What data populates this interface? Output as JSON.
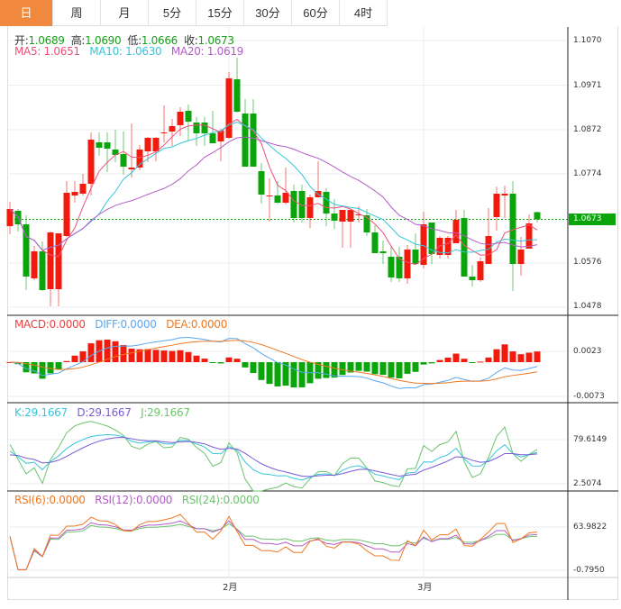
{
  "tabs": [
    "日",
    "周",
    "月",
    "5分",
    "15分",
    "30分",
    "60分",
    "4时"
  ],
  "active_tab": 0,
  "ohlc_header": {
    "open_label": "开:",
    "open": "1.0689",
    "high_label": "高:",
    "high": "1.0690",
    "low_label": "低:",
    "low": "1.0666",
    "close_label": "收:",
    "close": "1.0673"
  },
  "ma_header": {
    "ma5": "MA5: 1.0651",
    "ma10": "MA10: 1.0630",
    "ma20": "MA20: 1.0619"
  },
  "macd_header": {
    "macd": "MACD:0.0000",
    "diff": "DIFF:0.0000",
    "dea": "DEA:0.0000"
  },
  "kdj_header": {
    "k": "K:29.1667",
    "d": "D:29.1667",
    "j": "J:29.1667"
  },
  "rsi_header": {
    "rsi6": "RSI(6):0.0000",
    "rsi12": "RSI(12):0.0000",
    "rsi24": "RSI(24):0.0000"
  },
  "colors": {
    "up": "#f21a0c",
    "down": "#0aa50a",
    "ma5": "#f0507a",
    "ma10": "#36c5dc",
    "ma20": "#b45cc8",
    "diff": "#5aa8f0",
    "dea": "#f07820",
    "k": "#36c5dc",
    "d": "#7b5cd6",
    "j": "#6cc46c",
    "rsi6": "#f07820",
    "rsi12": "#b45cc8",
    "rsi24": "#6cc46c"
  },
  "chart_data": {
    "type": "candlestick",
    "price_ticks": [
      "1.1070",
      "1.0971",
      "1.0872",
      "1.0774",
      "1.0576",
      "1.0478"
    ],
    "price_range": [
      1.0478,
      1.107
    ],
    "current_price": "1.0673",
    "macd_ticks": [
      "0.0023",
      "-0.0073"
    ],
    "kdj_ticks": [
      "79.6149",
      "2.5074"
    ],
    "rsi_ticks": [
      "63.9822",
      "-0.7950"
    ],
    "month_labels": [
      {
        "label": "2月",
        "index": 27
      },
      {
        "label": "3月",
        "index": 51
      }
    ],
    "candles": [
      [
        1.0658,
        1.0712,
        1.064,
        1.0696
      ],
      [
        1.0692,
        1.0696,
        1.0646,
        1.0662
      ],
      [
        1.0662,
        1.0682,
        1.0516,
        1.0546
      ],
      [
        1.0542,
        1.0614,
        1.0538,
        1.0602
      ],
      [
        1.0602,
        1.0624,
        1.0514,
        1.0516
      ],
      [
        1.0518,
        1.0646,
        1.048,
        1.0644
      ],
      [
        1.0518,
        1.0642,
        1.048,
        1.0642
      ],
      [
        1.0636,
        1.0758,
        1.0634,
        1.0732
      ],
      [
        1.0726,
        1.0758,
        1.071,
        1.0734
      ],
      [
        1.073,
        1.0774,
        1.0726,
        1.0752
      ],
      [
        1.0752,
        1.0866,
        1.0726,
        1.085
      ],
      [
        1.0844,
        1.0866,
        1.0814,
        1.0832
      ],
      [
        1.0844,
        1.0866,
        1.0778,
        1.083
      ],
      [
        1.0828,
        1.0872,
        1.08,
        1.0816
      ],
      [
        1.0818,
        1.0868,
        1.0772,
        1.079
      ],
      [
        1.0784,
        1.0886,
        1.0766,
        1.0788
      ],
      [
        1.0788,
        1.0838,
        1.0782,
        1.0828
      ],
      [
        1.0824,
        1.0856,
        1.08,
        1.0854
      ],
      [
        1.0824,
        1.0856,
        1.0802,
        1.0854
      ],
      [
        1.0864,
        1.0926,
        1.0844,
        1.0866
      ],
      [
        1.0868,
        1.0896,
        1.0836,
        1.088
      ],
      [
        1.0882,
        1.0922,
        1.0858,
        1.0912
      ],
      [
        1.0914,
        1.0928,
        1.0848,
        1.089
      ],
      [
        1.0888,
        1.09,
        1.0836,
        1.0864
      ],
      [
        1.0888,
        1.09,
        1.0836,
        1.0864
      ],
      [
        1.0864,
        1.0914,
        1.0842,
        1.0842
      ],
      [
        1.0846,
        1.0874,
        1.0802,
        1.087
      ],
      [
        1.0854,
        1.1,
        1.0852,
        1.0986
      ],
      [
        1.0984,
        1.1032,
        1.091,
        1.0912
      ],
      [
        1.0908,
        1.094,
        1.079,
        1.079
      ],
      [
        1.0908,
        1.094,
        1.079,
        1.079
      ],
      [
        1.078,
        1.0798,
        1.0708,
        1.0728
      ],
      [
        1.0724,
        1.0764,
        1.0668,
        1.0726
      ],
      [
        1.0726,
        1.0758,
        1.0708,
        1.071
      ],
      [
        1.071,
        1.0788,
        1.0706,
        1.0732
      ],
      [
        1.0736,
        1.075,
        1.0666,
        1.0676
      ],
      [
        1.0736,
        1.075,
        1.0666,
        1.0676
      ],
      [
        1.0676,
        1.0728,
        1.0654,
        1.0722
      ],
      [
        1.0722,
        1.0802,
        1.0722,
        1.0736
      ],
      [
        1.0734,
        1.0742,
        1.0658,
        1.0686
      ],
      [
        1.0686,
        1.0718,
        1.0652,
        1.067
      ],
      [
        1.0668,
        1.0694,
        1.061,
        1.0694
      ],
      [
        1.0668,
        1.0696,
        1.061,
        1.0694
      ],
      [
        1.0682,
        1.0702,
        1.0666,
        1.0684
      ],
      [
        1.0682,
        1.0696,
        1.0636,
        1.0644
      ],
      [
        1.0644,
        1.066,
        1.0598,
        1.0598
      ],
      [
        1.0602,
        1.0626,
        1.0574,
        1.0598
      ],
      [
        1.059,
        1.0614,
        1.0534,
        1.0544
      ],
      [
        1.059,
        1.0612,
        1.0534,
        1.0542
      ],
      [
        1.0542,
        1.0616,
        1.053,
        1.0606
      ],
      [
        1.0606,
        1.0642,
        1.0572,
        1.0574
      ],
      [
        1.0572,
        1.069,
        1.0564,
        1.0662
      ],
      [
        1.0666,
        1.0666,
        1.0574,
        1.0596
      ],
      [
        1.0594,
        1.0636,
        1.0586,
        1.0632
      ],
      [
        1.0594,
        1.0636,
        1.0586,
        1.0632
      ],
      [
        1.062,
        1.0694,
        1.062,
        1.0672
      ],
      [
        1.0676,
        1.0694,
        1.0546,
        1.0546
      ],
      [
        1.0546,
        1.0572,
        1.0524,
        1.0538
      ],
      [
        1.0538,
        1.0588,
        1.0534,
        1.058
      ],
      [
        1.0574,
        1.0698,
        1.0574,
        1.0636
      ],
      [
        1.0678,
        1.0746,
        1.0648,
        1.073
      ],
      [
        1.0726,
        1.0748,
        1.0676,
        1.073
      ],
      [
        1.073,
        1.0758,
        1.0514,
        1.0574
      ],
      [
        1.0574,
        1.0634,
        1.0548,
        1.0606
      ],
      [
        1.0608,
        1.0684,
        1.0608,
        1.0664
      ],
      [
        1.0689,
        1.069,
        1.0666,
        1.0673
      ]
    ]
  }
}
